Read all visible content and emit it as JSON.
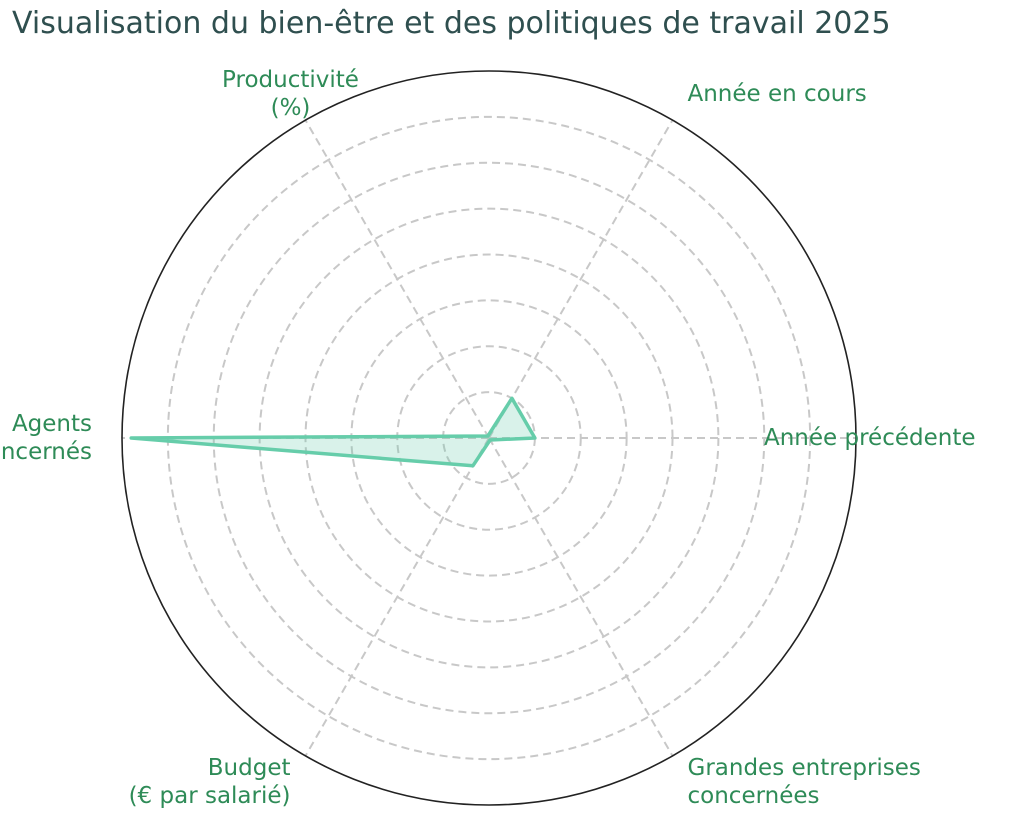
{
  "chart_data": {
    "type": "radar",
    "title": "Visualisation du bien-être et des politiques de travail 2025",
    "axes": [
      {
        "lines": [
          "Année précédente"
        ]
      },
      {
        "lines": [
          "Année en cours"
        ]
      },
      {
        "lines": [
          "Productivité",
          "(%)"
        ]
      },
      {
        "lines": [
          "Agents",
          "concernés"
        ]
      },
      {
        "lines": [
          "Budget",
          "(€ par salarié)"
        ]
      },
      {
        "lines": [
          "Grandes entreprises",
          "concernées"
        ]
      }
    ],
    "rmax": 8,
    "grid_rings": [
      1,
      2,
      3,
      4,
      5,
      6,
      7,
      8
    ],
    "grid": true,
    "series": [
      {
        "values": [
          1.0,
          1.0,
          0.05,
          7.8,
          0.7,
          0.05
        ],
        "color": "#66cdaa",
        "fill_opacity": 0.25
      }
    ],
    "colors": {
      "grid": "#c8c8c8",
      "frame": "#222222",
      "label": "#2e8b57",
      "title": "#2f4f4f"
    }
  }
}
